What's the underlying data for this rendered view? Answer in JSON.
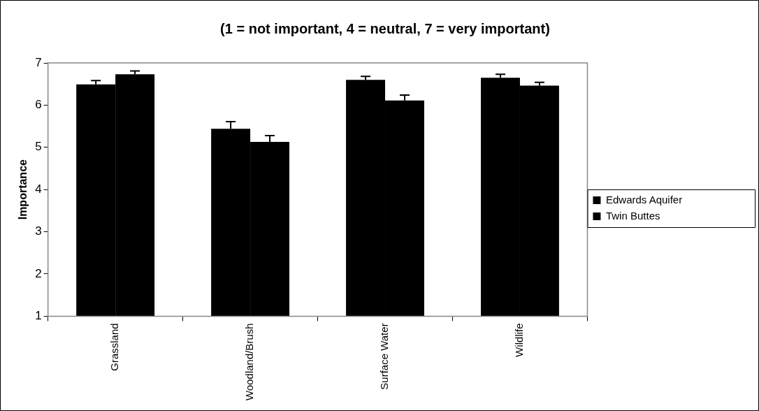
{
  "chart_data": {
    "type": "bar",
    "title": "(1 = not important, 4 = neutral, 7 = very important)",
    "ylabel": "Importance",
    "categories": [
      "Grassland",
      "Woodland/Brush",
      "Surface Water",
      "Wildlife"
    ],
    "series": [
      {
        "name": "Edwards Aquifer",
        "color": "#000000",
        "values": [
          6.49,
          5.44,
          6.6,
          6.65
        ],
        "errors": [
          [
            6.49,
            6.58
          ],
          [
            5.44,
            5.61
          ],
          [
            6.6,
            6.68
          ],
          [
            6.65,
            6.73
          ]
        ]
      },
      {
        "name": "Twin Buttes",
        "color": "#000000",
        "values": [
          6.73,
          5.13,
          6.11,
          6.46
        ],
        "errors": [
          [
            6.73,
            6.81
          ],
          [
            5.13,
            5.28
          ],
          [
            6.11,
            6.24
          ],
          [
            6.46,
            6.54
          ]
        ]
      }
    ],
    "ylim": [
      1,
      7
    ],
    "yticks": [
      1,
      2,
      3,
      4,
      5,
      6,
      7
    ],
    "legend": "right"
  }
}
